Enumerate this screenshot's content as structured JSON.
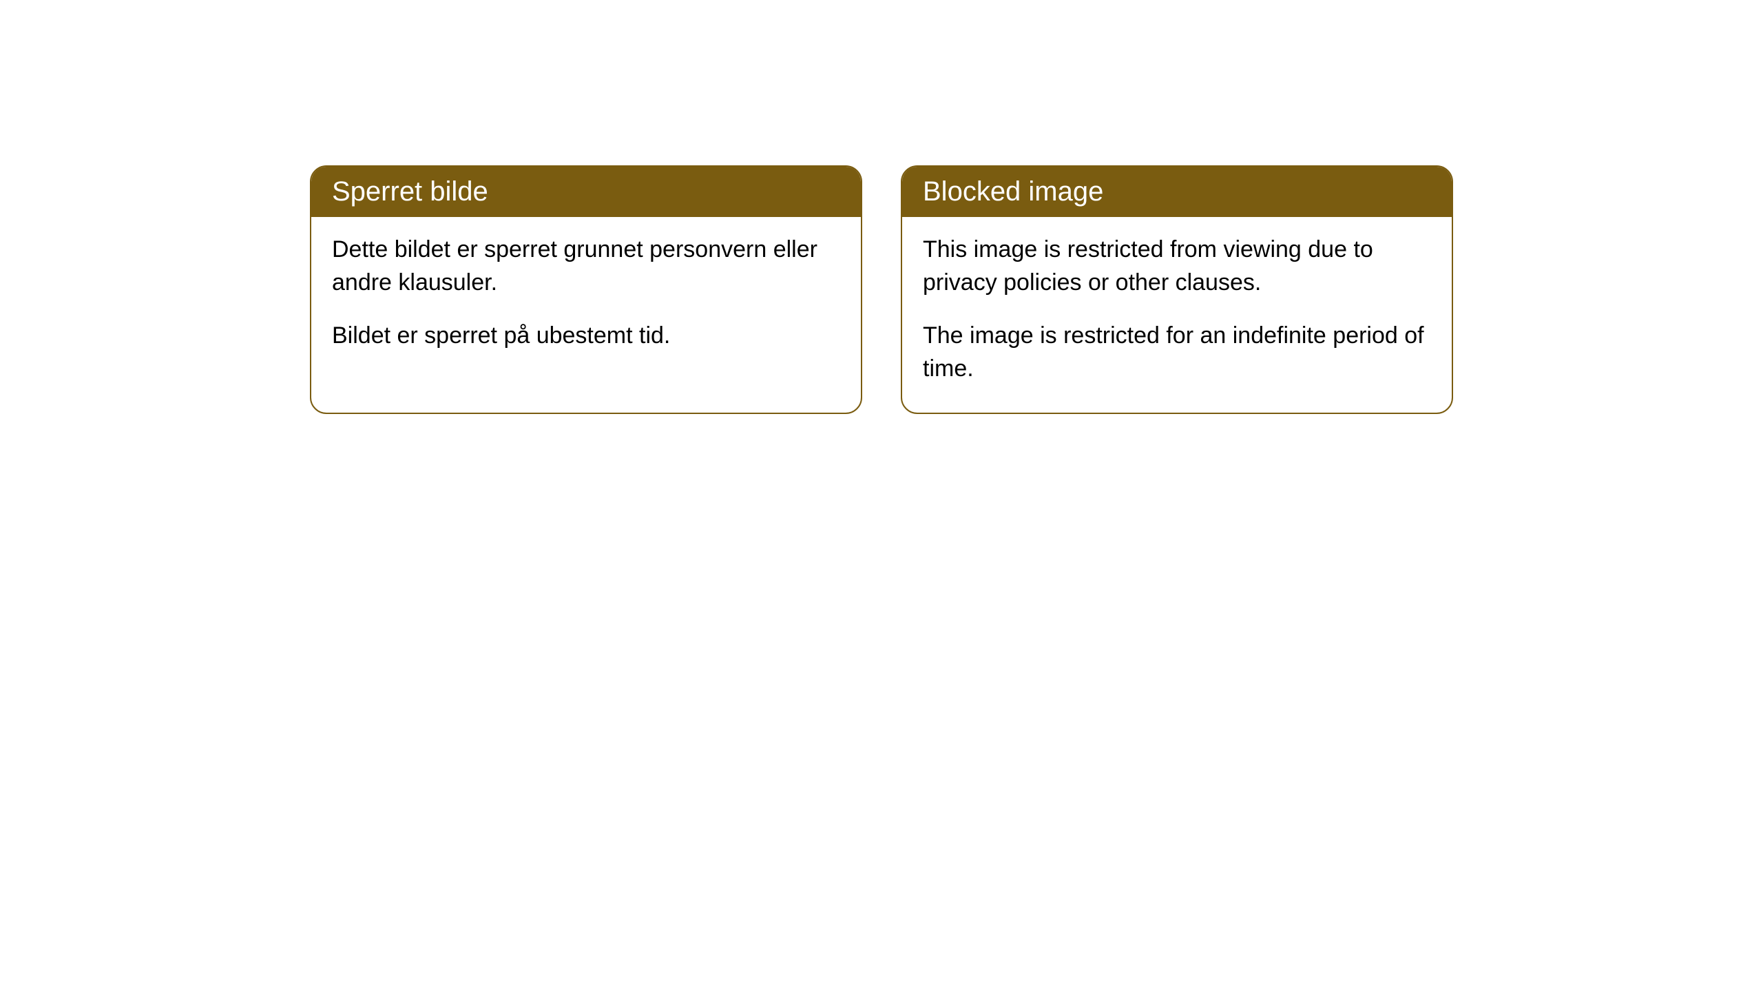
{
  "styling": {
    "header_bg_color": "#7a5c10",
    "header_text_color": "#ffffff",
    "body_bg_color": "#ffffff",
    "body_text_color": "#000000",
    "border_color": "#7a5c10",
    "border_radius": 24,
    "header_font_size": 40,
    "body_font_size": 34
  },
  "cards": {
    "norwegian": {
      "title": "Sperret bilde",
      "paragraph1": "Dette bildet er sperret grunnet personvern eller andre klausuler.",
      "paragraph2": "Bildet er sperret på ubestemt tid."
    },
    "english": {
      "title": "Blocked image",
      "paragraph1": "This image is restricted from viewing due to privacy policies or other clauses.",
      "paragraph2": "The image is restricted for an indefinite period of time."
    }
  }
}
